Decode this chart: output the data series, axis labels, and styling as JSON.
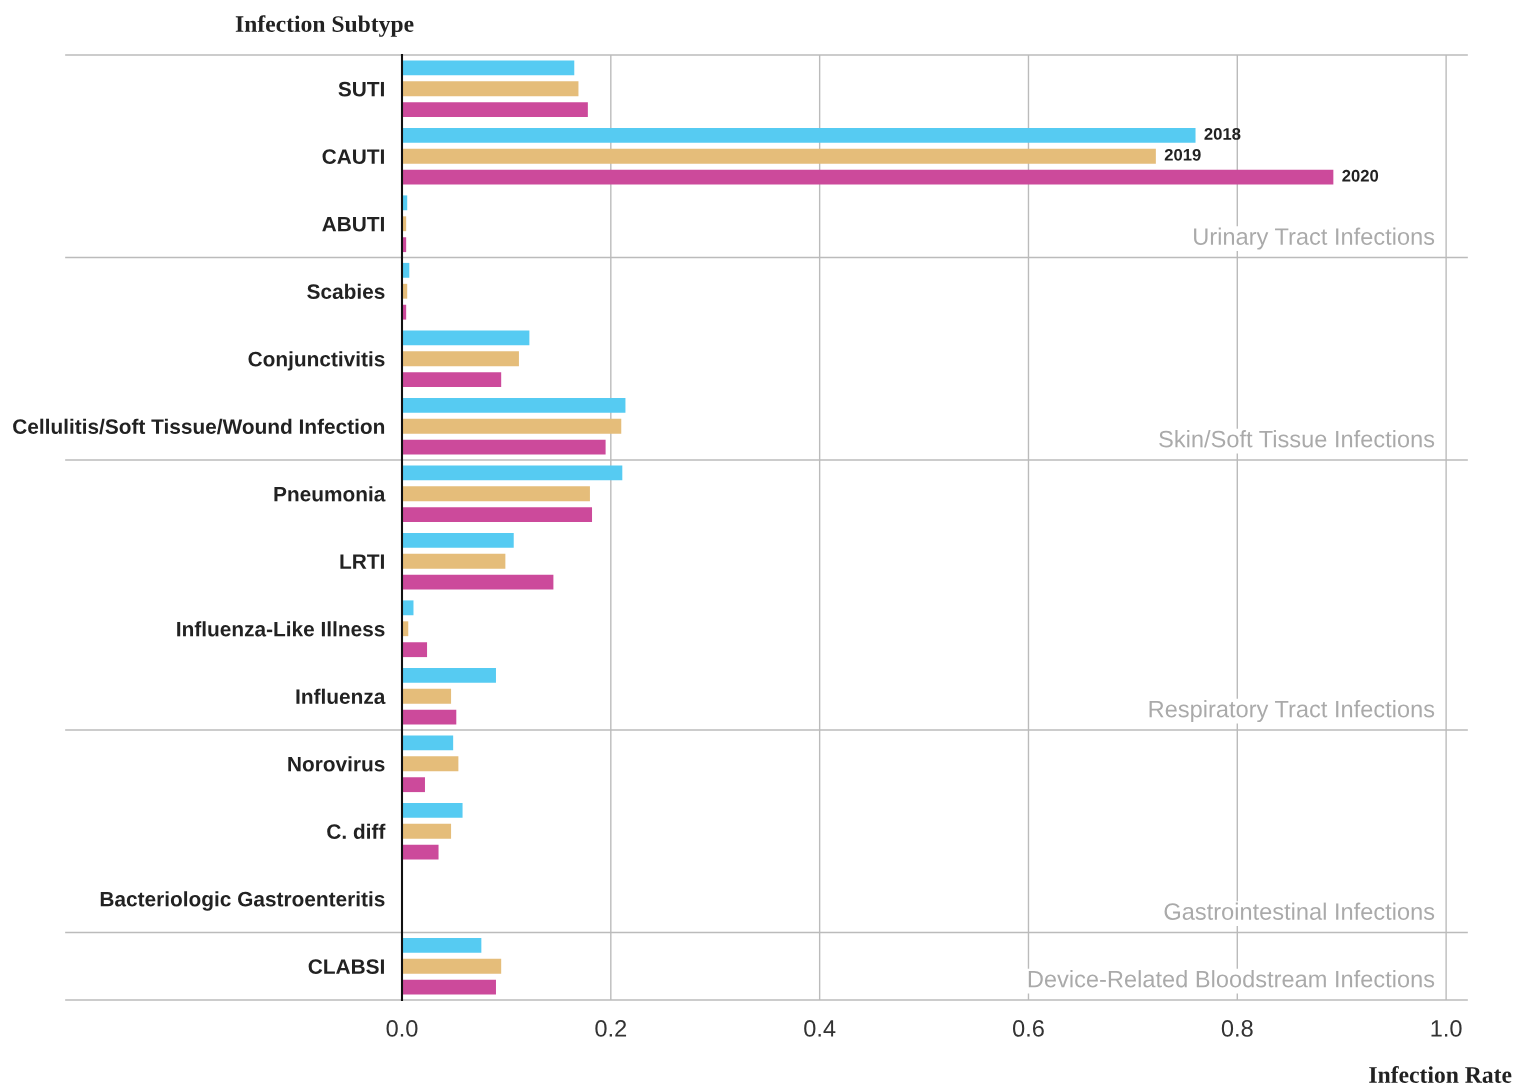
{
  "chart_data": {
    "type": "bar",
    "orientation": "horizontal",
    "ylabel": "Infection Subtype",
    "xlabel": "Infection Rate",
    "categories": [
      "SUTI",
      "CAUTI",
      "ABUTI",
      "Scabies",
      "Conjunctivitis",
      "Cellulitis/Soft Tissue/Wound Infection",
      "Pneumonia",
      "LRTI",
      "Influenza-Like Illness",
      "Influenza",
      "Norovirus",
      "C. diff",
      "Bacteriologic Gastroenteritis",
      "CLABSI"
    ],
    "series": [
      {
        "name": "2018",
        "color": "#56cbf2",
        "values": [
          0.165,
          0.76,
          0.005,
          0.007,
          0.122,
          0.214,
          0.211,
          0.107,
          0.011,
          0.09,
          0.049,
          0.058,
          0,
          0.076
        ]
      },
      {
        "name": "2019",
        "color": "#e5bd7a",
        "values": [
          0.169,
          0.722,
          0.004,
          0.005,
          0.112,
          0.21,
          0.18,
          0.099,
          0.006,
          0.047,
          0.054,
          0.047,
          0,
          0.095
        ]
      },
      {
        "name": "2020",
        "color": "#cc4a9b",
        "values": [
          0.178,
          0.892,
          0.004,
          0.004,
          0.095,
          0.195,
          0.182,
          0.145,
          0.024,
          0.052,
          0.022,
          0.035,
          0,
          0.09
        ]
      }
    ],
    "xlim": [
      0,
      1.02
    ],
    "xticks": [
      {
        "value": 0,
        "label": "0.0"
      },
      0.2,
      0.4,
      0.6,
      0.8,
      {
        "value": 1.0,
        "label": "1.0"
      }
    ],
    "grid": "x",
    "legend": false,
    "annotations": [
      "Urinary Tract Infections",
      "Skin/Soft Tissue Infections",
      "Respiratory Tract Infections",
      "Gastrointestinal Infections",
      "Device-Related Bloodstream Infections"
    ]
  }
}
